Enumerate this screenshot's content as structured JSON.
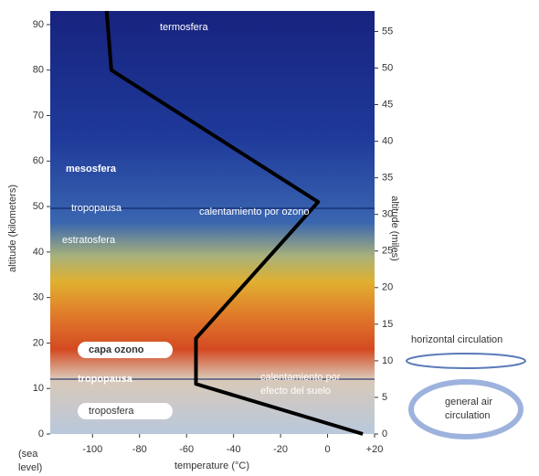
{
  "chart_data": {
    "type": "line",
    "xlabel": "temperature (°C)",
    "ylabel": "altitude (kilometers)",
    "y2label": "altitude (miles)",
    "xlim": [
      -118,
      20
    ],
    "ylim": [
      0,
      93
    ],
    "y2lim": [
      0,
      57.8
    ],
    "xticks": [
      -100,
      -80,
      -60,
      -40,
      -20,
      0,
      {
        "value": 20,
        "label": "+20"
      }
    ],
    "yticks": [
      0,
      10,
      20,
      30,
      40,
      50,
      60,
      70,
      80,
      90
    ],
    "y2ticks": [
      0,
      5,
      10,
      15,
      20,
      25,
      30,
      35,
      40,
      45,
      50,
      55
    ],
    "series": [
      {
        "color": "#000000",
        "x": [
          15,
          -56,
          -56,
          -4,
          -92,
          -94
        ],
        "values": [
          0,
          11,
          21,
          51,
          80,
          93
        ]
      }
    ],
    "annotations": [
      "termosfera",
      "mesosfera",
      "tropopausa",
      "estratosfera",
      "calentamiento por ozono",
      "capa ozono",
      "tropopausa",
      "calentamiento por",
      "efecto del suelo",
      "troposfera",
      "horizontal circulation",
      "general air",
      "circulation",
      "(sea",
      "level)"
    ]
  }
}
